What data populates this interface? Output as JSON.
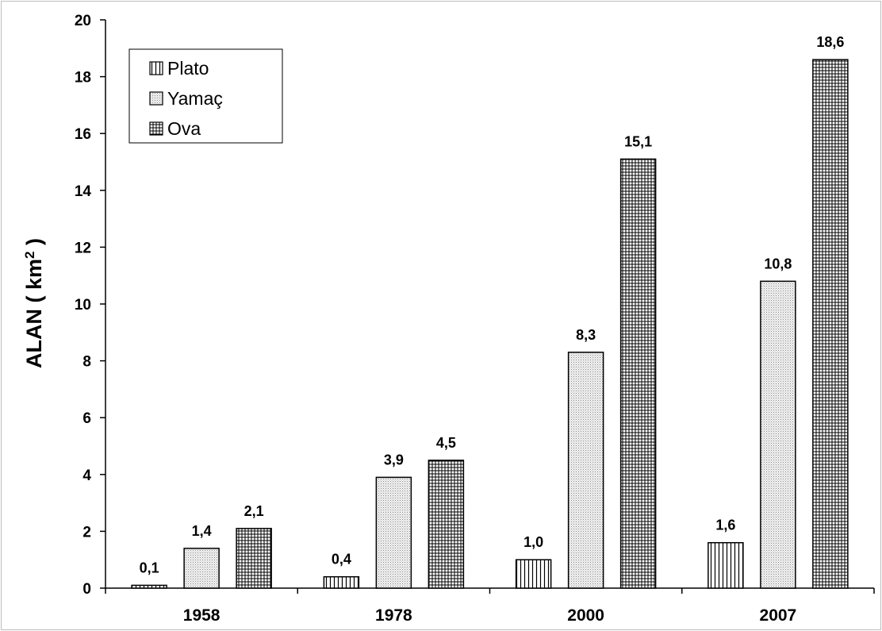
{
  "chart_data": {
    "type": "bar",
    "title": "",
    "xlabel": "",
    "ylabel": "ALAN ( km",
    "ylabel_superscript": "2",
    "ylabel_suffix": " )",
    "categories": [
      "1958",
      "1978",
      "2000",
      "2007"
    ],
    "series": [
      {
        "name": "Plato",
        "values": [
          0.1,
          0.4,
          1.0,
          1.6
        ],
        "labels": [
          "0,1",
          "0,4",
          "1,0",
          "1,6"
        ],
        "pattern": "vertical-lines"
      },
      {
        "name": "Yamaç",
        "values": [
          1.4,
          3.9,
          8.3,
          10.8
        ],
        "labels": [
          "1,4",
          "3,9",
          "8,3",
          "10,8"
        ],
        "pattern": "dots"
      },
      {
        "name": "Ova",
        "values": [
          2.1,
          4.5,
          15.1,
          18.6
        ],
        "labels": [
          "2,1",
          "4,5",
          "15,1",
          "18,6"
        ],
        "pattern": "grid"
      }
    ],
    "ylim": [
      0,
      20
    ],
    "yticks": [
      "0",
      "2",
      "4",
      "6",
      "8",
      "10",
      "12",
      "14",
      "16",
      "18",
      "20"
    ],
    "grid": false,
    "legend_position": "top-left"
  }
}
